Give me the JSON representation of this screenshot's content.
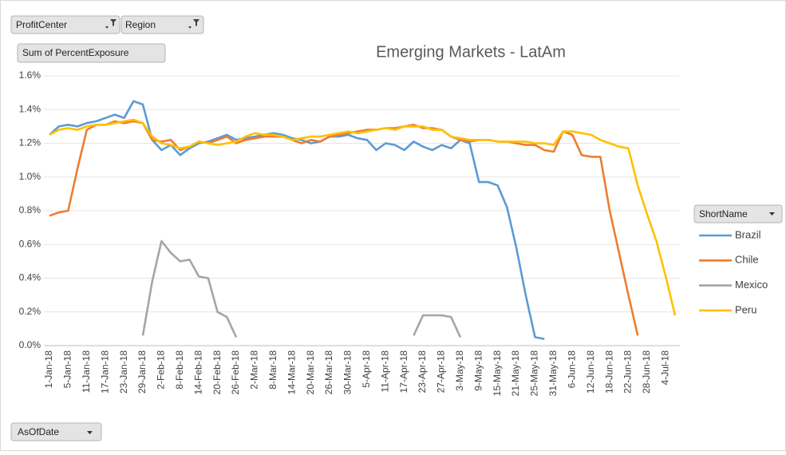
{
  "pivot_fields": {
    "filters": [
      "ProfitCenter",
      "Region"
    ],
    "values": "Sum of PercentExposure",
    "legend": "ShortName",
    "axis": "AsOfDate"
  },
  "chart_data": {
    "type": "line",
    "title": "Emerging Markets - LatAm",
    "categories": [
      "1-Jan-18",
      null,
      "5-Jan-18",
      null,
      "11-Jan-18",
      null,
      "17-Jan-18",
      null,
      "23-Jan-18",
      null,
      "29-Jan-18",
      null,
      "2-Feb-18",
      null,
      "8-Feb-18",
      null,
      "14-Feb-18",
      null,
      "20-Feb-18",
      null,
      "26-Feb-18",
      null,
      "2-Mar-18",
      null,
      "8-Mar-18",
      null,
      "14-Mar-18",
      null,
      "20-Mar-18",
      null,
      "26-Mar-18",
      null,
      "30-Mar-18",
      null,
      "5-Apr-18",
      null,
      "11-Apr-18",
      null,
      "17-Apr-18",
      null,
      "23-Apr-18",
      null,
      "27-Apr-18",
      null,
      "3-May-18",
      null,
      "9-May-18",
      null,
      "15-May-18",
      null,
      "21-May-18",
      null,
      "25-May-18",
      null,
      "31-May-18",
      null,
      "6-Jun-18",
      null,
      "12-Jun-18",
      null,
      "18-Jun-18",
      null,
      "22-Jun-18",
      null,
      "28-Jun-18",
      null,
      "4-Jul-18",
      null
    ],
    "series": [
      {
        "name": "Brazil",
        "color": "#5b9bd5",
        "values": [
          1.25,
          1.3,
          1.31,
          1.3,
          1.32,
          1.33,
          1.35,
          1.37,
          1.35,
          1.45,
          1.43,
          1.22,
          1.16,
          1.19,
          1.13,
          1.17,
          1.2,
          1.21,
          1.23,
          1.25,
          1.22,
          1.23,
          1.24,
          1.25,
          1.26,
          1.25,
          1.23,
          1.22,
          1.2,
          1.21,
          1.24,
          1.24,
          1.25,
          1.23,
          1.22,
          1.16,
          1.2,
          1.19,
          1.16,
          1.21,
          1.18,
          1.16,
          1.19,
          1.17,
          1.22,
          1.2,
          0.97,
          0.97,
          0.95,
          0.82,
          0.58,
          0.3,
          0.05,
          0.04,
          null,
          null,
          null,
          null,
          null,
          null,
          null,
          null,
          null,
          null,
          null,
          null,
          null,
          null
        ]
      },
      {
        "name": "Chile",
        "color": "#ed7d31",
        "values": [
          0.77,
          0.79,
          0.8,
          1.05,
          1.28,
          1.31,
          1.31,
          1.33,
          1.32,
          1.33,
          1.32,
          1.22,
          1.21,
          1.22,
          1.16,
          1.18,
          1.21,
          1.2,
          1.22,
          1.24,
          1.2,
          1.22,
          1.23,
          1.24,
          1.24,
          1.24,
          1.22,
          1.2,
          1.22,
          1.21,
          1.24,
          1.25,
          1.26,
          1.27,
          1.28,
          1.28,
          1.29,
          1.29,
          1.3,
          1.31,
          1.29,
          1.29,
          1.28,
          1.24,
          1.22,
          1.21,
          1.22,
          1.22,
          1.21,
          1.21,
          1.2,
          1.19,
          1.19,
          1.16,
          1.15,
          1.27,
          1.25,
          1.13,
          1.12,
          1.12,
          0.8,
          0.55,
          0.3,
          0.06,
          null,
          null,
          null,
          null
        ]
      },
      {
        "name": "Mexico",
        "color": "#a5a5a5",
        "values": [
          null,
          null,
          null,
          null,
          null,
          null,
          null,
          null,
          null,
          null,
          0.06,
          0.38,
          0.62,
          0.55,
          0.5,
          0.51,
          0.41,
          0.4,
          0.2,
          0.17,
          0.05,
          null,
          null,
          null,
          null,
          null,
          null,
          null,
          null,
          null,
          null,
          null,
          null,
          null,
          null,
          null,
          null,
          null,
          null,
          0.06,
          0.18,
          0.18,
          0.18,
          0.17,
          0.05,
          null,
          null,
          null,
          null,
          null,
          null,
          null,
          null,
          null,
          null,
          null,
          null,
          null,
          null,
          null,
          null,
          null,
          null,
          null,
          null,
          null,
          null,
          null
        ]
      },
      {
        "name": "Peru",
        "color": "#ffc000",
        "values": [
          1.25,
          1.28,
          1.29,
          1.28,
          1.3,
          1.31,
          1.31,
          1.32,
          1.33,
          1.34,
          1.32,
          1.24,
          1.2,
          1.19,
          1.17,
          1.18,
          1.21,
          1.2,
          1.19,
          1.2,
          1.21,
          1.24,
          1.26,
          1.25,
          1.25,
          1.24,
          1.22,
          1.23,
          1.24,
          1.24,
          1.25,
          1.26,
          1.27,
          1.26,
          1.27,
          1.28,
          1.29,
          1.28,
          1.3,
          1.3,
          1.3,
          1.28,
          1.28,
          1.24,
          1.23,
          1.22,
          1.22,
          1.22,
          1.21,
          1.21,
          1.21,
          1.21,
          1.2,
          1.2,
          1.19,
          1.27,
          1.27,
          1.26,
          1.25,
          1.22,
          1.2,
          1.18,
          1.17,
          0.95,
          0.78,
          0.62,
          0.41,
          0.18
        ]
      }
    ],
    "ylim": [
      0,
      1.6
    ],
    "yticks": [
      {
        "value": 0,
        "label": "0.0%"
      },
      {
        "value": 0.2,
        "label": "0.2%"
      },
      {
        "value": 0.4,
        "label": "0.4%"
      },
      {
        "value": 0.6,
        "label": "0.6%"
      },
      {
        "value": 0.8,
        "label": "0.8%"
      },
      {
        "value": 1.0,
        "label": "1.0%"
      },
      {
        "value": 1.2,
        "label": "1.2%"
      },
      {
        "value": 1.4,
        "label": "1.4%"
      },
      {
        "value": 1.6,
        "label": "1.6%"
      }
    ],
    "grid": true,
    "legend": "right"
  }
}
